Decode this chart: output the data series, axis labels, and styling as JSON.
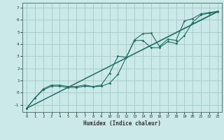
{
  "xlabel": "Humidex (Indice chaleur)",
  "bg_color": "#cce9e9",
  "grid_color": "#aacccc",
  "line_color": "#1a7060",
  "xlim": [
    -0.5,
    23.5
  ],
  "ylim": [
    -1.6,
    7.4
  ],
  "yticks": [
    -1,
    0,
    1,
    2,
    3,
    4,
    5,
    6,
    7
  ],
  "xticks": [
    0,
    1,
    2,
    3,
    4,
    5,
    6,
    7,
    8,
    9,
    10,
    11,
    12,
    13,
    14,
    15,
    16,
    17,
    18,
    19,
    20,
    21,
    22,
    23
  ],
  "line1_x": [
    0,
    1,
    2,
    3,
    4,
    5,
    6,
    7,
    8,
    9,
    10,
    11,
    12,
    13,
    14,
    15,
    16,
    17,
    18,
    19,
    20,
    21,
    22,
    23
  ],
  "line1_y": [
    -1.3,
    -0.45,
    0.3,
    0.62,
    0.62,
    0.5,
    0.5,
    0.62,
    0.5,
    0.62,
    1.6,
    3.0,
    2.9,
    4.35,
    4.85,
    4.9,
    3.8,
    4.4,
    4.3,
    5.9,
    6.1,
    6.5,
    6.6,
    6.7
  ],
  "line2_x": [
    0,
    1,
    2,
    3,
    4,
    5,
    6,
    7,
    8,
    9,
    10,
    11,
    12,
    13,
    14,
    15,
    16,
    17,
    18,
    19,
    20,
    21,
    22,
    23
  ],
  "line2_y": [
    -1.3,
    -0.45,
    0.22,
    0.52,
    0.52,
    0.42,
    0.42,
    0.52,
    0.48,
    0.52,
    0.78,
    1.5,
    2.9,
    4.3,
    4.3,
    3.7,
    3.7,
    4.2,
    4.05,
    4.7,
    5.8,
    6.4,
    6.55,
    6.65
  ],
  "line3_x": [
    0,
    23
  ],
  "line3_y": [
    -1.3,
    6.7
  ],
  "line4_x": [
    0,
    23
  ],
  "line4_y": [
    -1.3,
    6.65
  ]
}
